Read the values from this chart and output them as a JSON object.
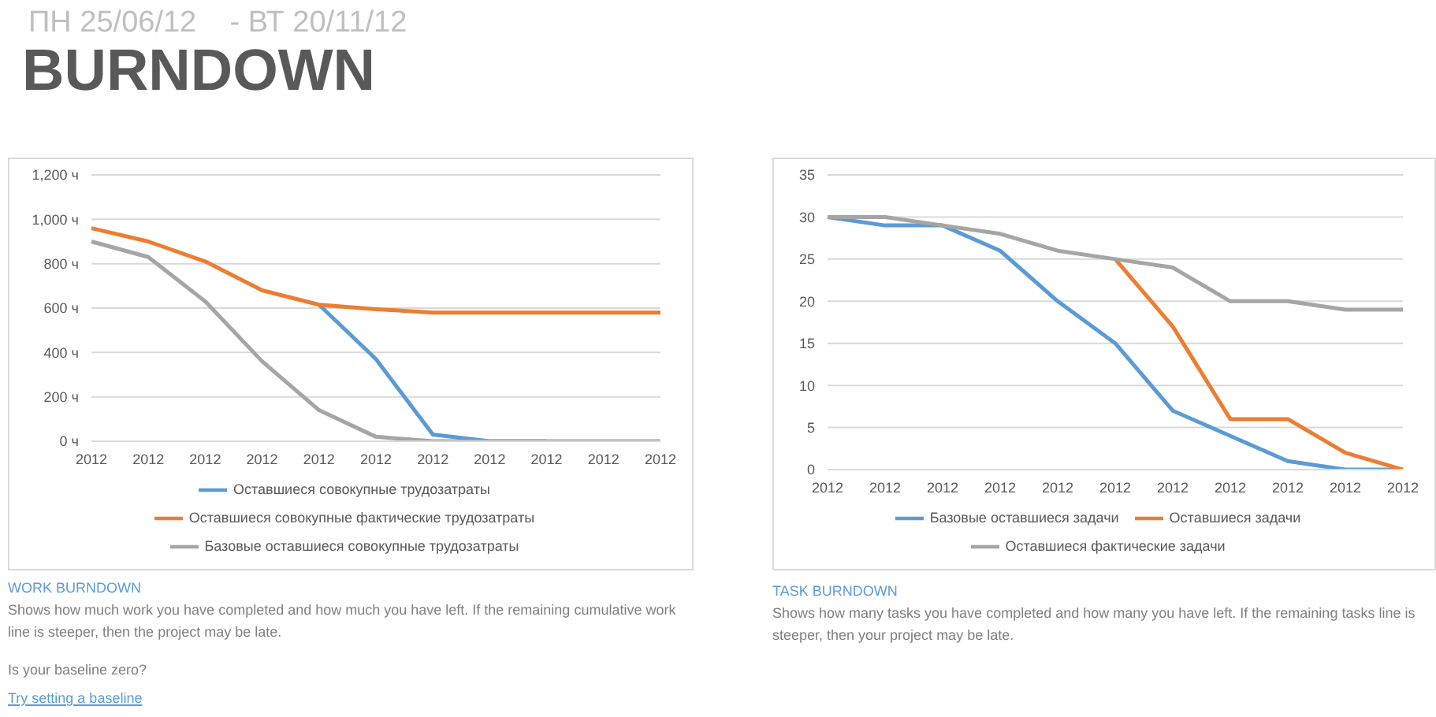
{
  "chart_data": [
    {
      "type": "line",
      "title": "BURNDOWN",
      "subtitle": "ПН 25/06/12    - ВТ 20/11/12",
      "categories": [
        "2012",
        "2012",
        "2012",
        "2012",
        "2012",
        "2012",
        "2012",
        "2012",
        "2012",
        "2012",
        "2012"
      ],
      "series": [
        {
          "name": "Оставшиеся совокупные трудозатраты",
          "color": "#5b9bd5",
          "values": [
            null,
            null,
            null,
            null,
            615,
            370,
            30,
            0,
            0,
            null,
            null
          ]
        },
        {
          "name": "Оставшиеся совокупные фактические трудозатраты",
          "color": "#ed7d31",
          "values": [
            960,
            900,
            810,
            680,
            615,
            595,
            580,
            580,
            580,
            580,
            580
          ]
        },
        {
          "name": "Базовые оставшиеся совокупные трудозатраты",
          "color": "#a5a5a5",
          "values": [
            900,
            830,
            630,
            360,
            140,
            20,
            0,
            0,
            0,
            0,
            0
          ]
        }
      ],
      "ylim": [
        0,
        1200
      ],
      "yticks": [
        {
          "value": 0,
          "label": "0 ч"
        },
        {
          "value": 200,
          "label": "200 ч"
        },
        {
          "value": 400,
          "label": "400 ч"
        },
        {
          "value": 600,
          "label": "600 ч"
        },
        {
          "value": 800,
          "label": "800 ч"
        },
        {
          "value": 1000,
          "label": "1,000 ч"
        },
        {
          "value": 1200,
          "label": "1,200 ч"
        }
      ],
      "grid": "y",
      "legend": "bottom",
      "marker": "none",
      "annotations": [
        "WORK BURNDOWN",
        "Shows how much work you have completed and how much you have left. If the remaining cumulative work line is steeper, then the project may be late.",
        "Is your baseline zero?",
        "Try setting a baseline"
      ]
    },
    {
      "type": "line",
      "categories": [
        "2012",
        "2012",
        "2012",
        "2012",
        "2012",
        "2012",
        "2012",
        "2012",
        "2012",
        "2012",
        "2012"
      ],
      "series": [
        {
          "name": "Базовые оставшиеся задачи",
          "color": "#5b9bd5",
          "values": [
            30,
            29,
            29,
            26,
            20,
            15,
            7,
            4,
            1,
            0,
            0
          ]
        },
        {
          "name": "Оставшиеся задачи",
          "color": "#ed7d31",
          "values": [
            null,
            null,
            null,
            null,
            null,
            25,
            17,
            6,
            6,
            2,
            0
          ]
        },
        {
          "name": "Оставшиеся фактические задачи",
          "color": "#a5a5a5",
          "values": [
            30,
            30,
            29,
            28,
            26,
            25,
            24,
            20,
            20,
            19,
            19
          ]
        }
      ],
      "ylim": [
        0,
        35
      ],
      "yticks": [
        0,
        5,
        10,
        15,
        20,
        25,
        30,
        35
      ],
      "grid": "y",
      "legend": "bottom",
      "marker": "none",
      "annotations": [
        "TASK BURNDOWN",
        "Shows how many tasks you have completed and how many you have left. If the remaining tasks line is steeper, then your project may be late."
      ]
    }
  ]
}
